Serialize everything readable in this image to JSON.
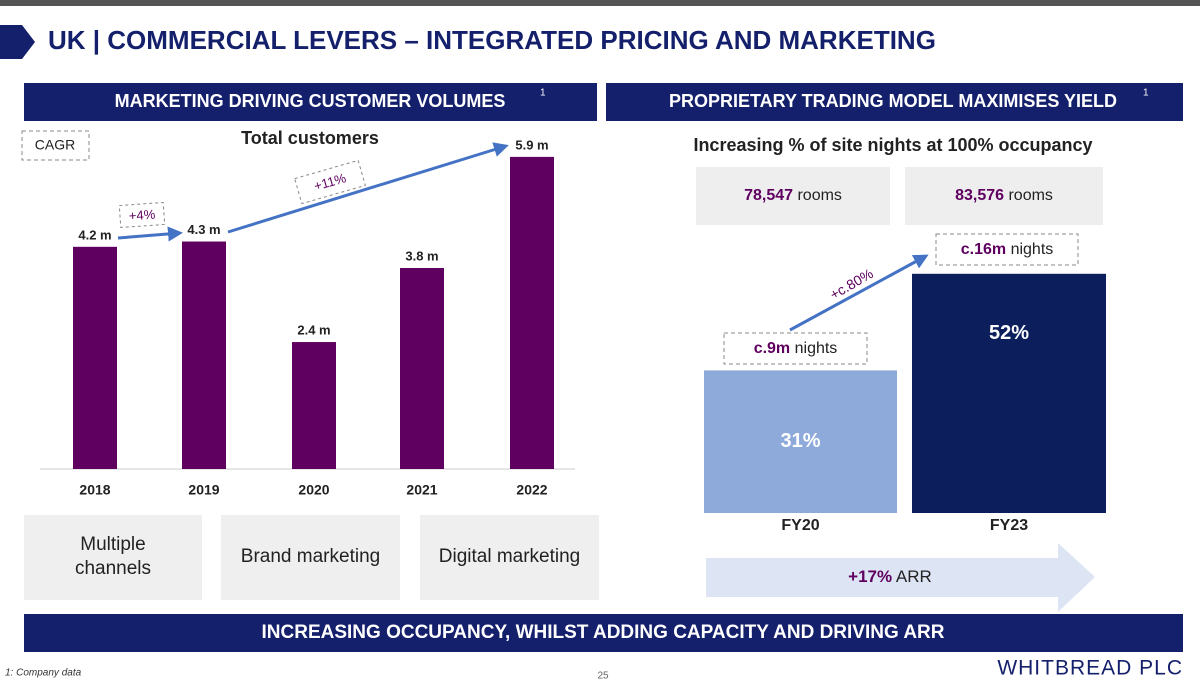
{
  "title": "UK | COMMERCIAL LEVERS – INTEGRATED PRICING AND MARKETING",
  "chart_data": [
    {
      "type": "bar",
      "header": "MARKETING DRIVING CUSTOMER VOLUMES",
      "header_note": "1",
      "title": "Total customers",
      "legend_label": "CAGR",
      "categories": [
        "2018",
        "2019",
        "2020",
        "2021",
        "2022"
      ],
      "values": [
        4.2,
        4.3,
        2.4,
        3.8,
        5.9
      ],
      "value_labels": [
        "4.2 m",
        "4.3 m",
        "2.4 m",
        "3.8 m",
        "5.9 m"
      ],
      "color": "#5f0060",
      "annotations": [
        "+4%",
        "+11%"
      ]
    },
    {
      "type": "bar",
      "header": "PROPRIETARY TRADING MODEL MAXIMISES YIELD",
      "header_note": "1",
      "title": "Increasing % of site nights at 100% occupancy",
      "categories": [
        "FY20",
        "FY23"
      ],
      "values": [
        31,
        52
      ],
      "value_labels": [
        "31%",
        "52%"
      ],
      "colors": [
        "#8eaadb",
        "#0c1f5c"
      ],
      "rooms": [
        {
          "value": "78,547",
          "unit": "rooms"
        },
        {
          "value": "83,576",
          "unit": "rooms"
        }
      ],
      "nights": [
        {
          "value": "c.9m",
          "unit": "nights"
        },
        {
          "value": "c.16m",
          "unit": "nights"
        }
      ],
      "growth": "+c.80%",
      "arr": {
        "value": "+17%",
        "unit": "ARR"
      }
    }
  ],
  "levers": [
    "Multiple channels",
    "Brand marketing",
    "Digital marketing"
  ],
  "banner": "INCREASING OCCUPANCY, WHILST ADDING CAPACITY AND DRIVING ARR",
  "footnote": "1: Company data",
  "page_number": "25",
  "logo": "WHITBREAD PLC"
}
